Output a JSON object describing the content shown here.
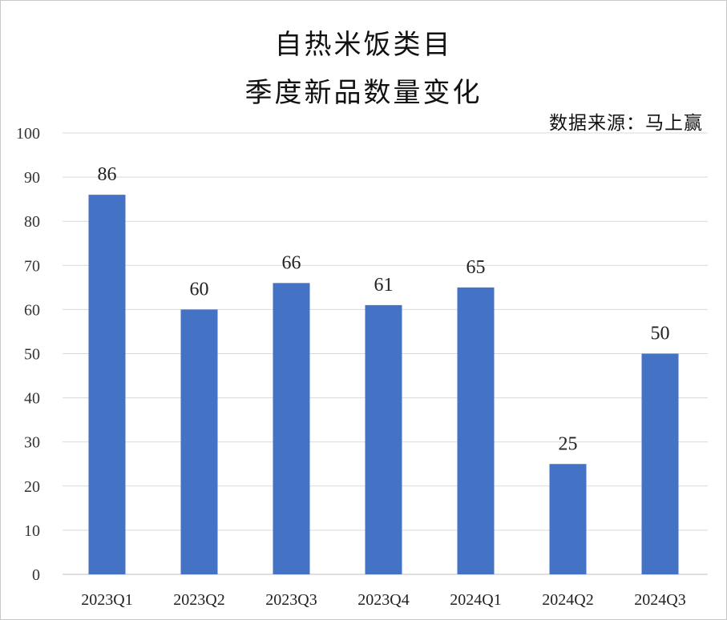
{
  "chart_data": {
    "type": "bar",
    "title_lines": [
      "自热米饭类目",
      "季度新品数量变化"
    ],
    "source": "数据来源：马上赢",
    "categories": [
      "2023Q1",
      "2023Q2",
      "2023Q3",
      "2023Q4",
      "2024Q1",
      "2024Q2",
      "2024Q3"
    ],
    "values": [
      86,
      60,
      66,
      61,
      65,
      25,
      50
    ],
    "ylim": [
      0,
      100
    ],
    "yticks": [
      0,
      10,
      20,
      30,
      40,
      50,
      60,
      70,
      80,
      90,
      100
    ],
    "grid": true,
    "legend": "none",
    "bar_color": "#4472C4",
    "grid_color": "#d9d9d9",
    "xlabel": "",
    "ylabel": ""
  }
}
